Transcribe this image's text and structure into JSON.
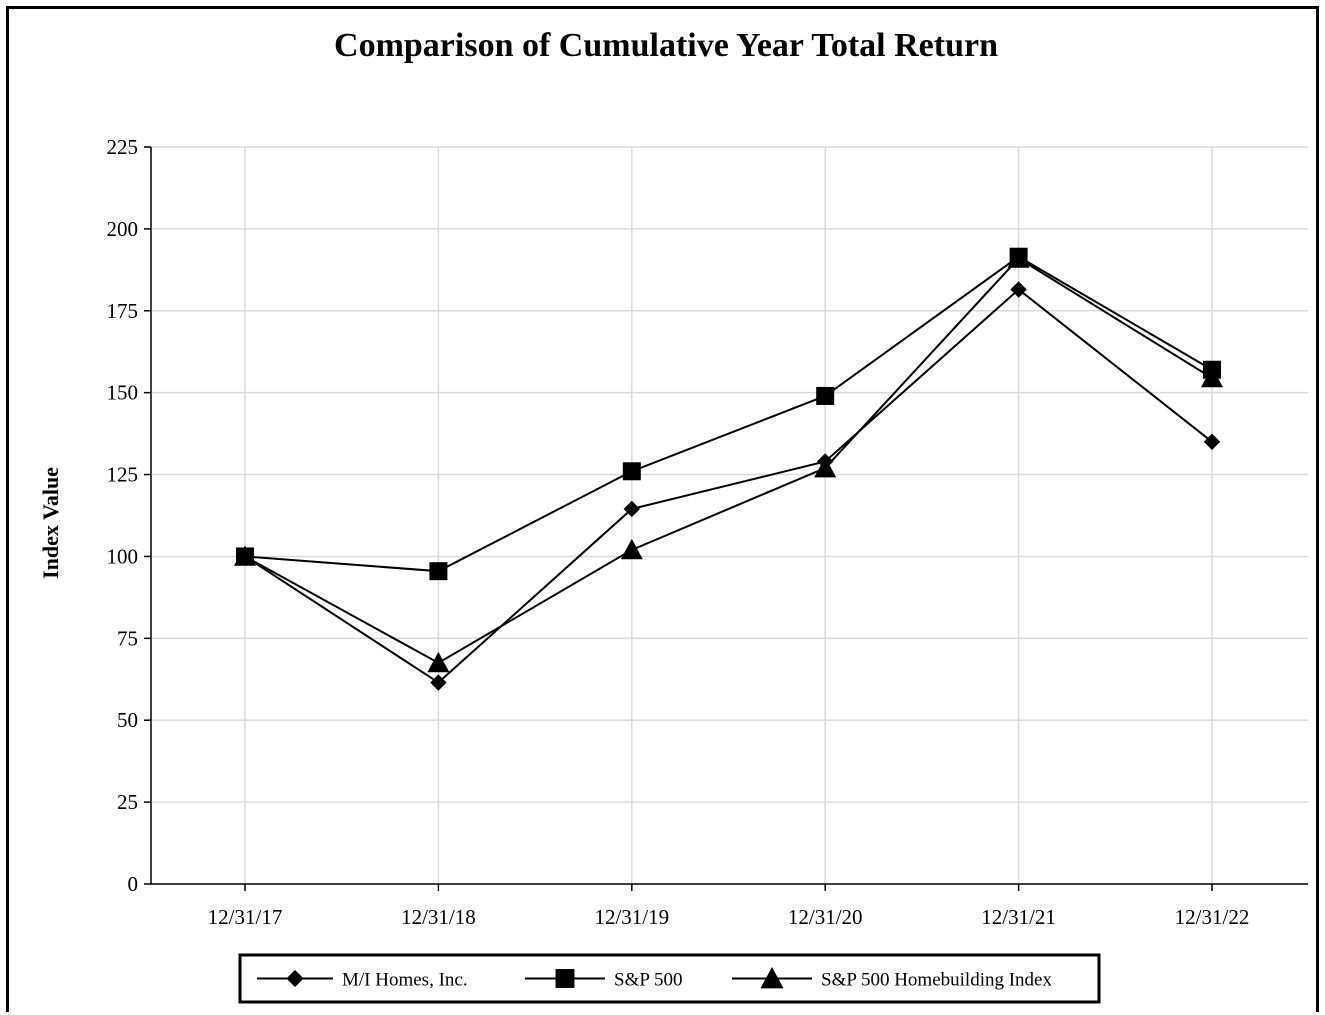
{
  "chart_data": {
    "type": "line",
    "title": "Comparison of Cumulative Year Total Return",
    "xlabel": "",
    "ylabel": "Index Value",
    "categories": [
      "12/31/17",
      "12/31/18",
      "12/31/19",
      "12/31/20",
      "12/31/21",
      "12/31/22"
    ],
    "ylim": [
      0,
      225
    ],
    "yticks": [
      0,
      25,
      50,
      75,
      100,
      125,
      150,
      175,
      200,
      225
    ],
    "grid": true,
    "legend_position": "bottom",
    "series": [
      {
        "name": "M/I Homes, Inc.",
        "marker": "diamond",
        "color": "#000000",
        "values": [
          100,
          61.5,
          114.5,
          129,
          181.5,
          135
        ]
      },
      {
        "name": "S&P 500",
        "marker": "square",
        "color": "#000000",
        "values": [
          100,
          95.5,
          126,
          149,
          191.5,
          157
        ]
      },
      {
        "name": "S&P 500 Homebuilding Index",
        "marker": "triangle",
        "color": "#000000",
        "values": [
          100,
          67.5,
          102,
          127,
          191,
          154.5
        ]
      }
    ]
  }
}
